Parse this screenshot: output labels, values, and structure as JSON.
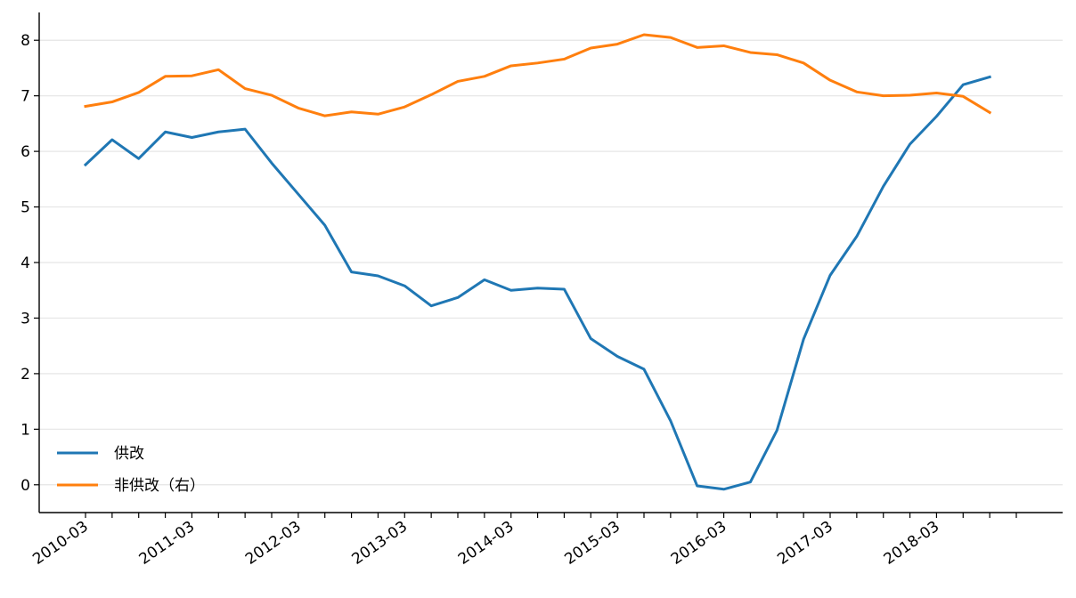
{
  "chart_data": {
    "type": "line",
    "title": "",
    "xlabel": "",
    "ylabel": "",
    "ylim": [
      -0.5,
      8.5
    ],
    "yticks": [
      0,
      1,
      2,
      3,
      4,
      5,
      6,
      7,
      8
    ],
    "grid": "horizontal",
    "legend_position": "lower-left",
    "x": [
      "2010-03",
      "2010-06",
      "2010-09",
      "2010-12",
      "2011-03",
      "2011-06",
      "2011-09",
      "2011-12",
      "2012-03",
      "2012-06",
      "2012-09",
      "2012-12",
      "2013-03",
      "2013-06",
      "2013-09",
      "2013-12",
      "2014-03",
      "2014-06",
      "2014-09",
      "2014-12",
      "2015-03",
      "2015-06",
      "2015-09",
      "2015-12",
      "2016-03",
      "2016-06",
      "2016-09",
      "2016-12",
      "2017-03",
      "2017-06",
      "2017-09",
      "2017-12",
      "2018-03",
      "2018-06",
      "2018-09",
      "2018-12"
    ],
    "xtick_labels": [
      "2010-03",
      "2011-03",
      "2012-03",
      "2013-03",
      "2014-03",
      "2015-03",
      "2016-03",
      "2017-03",
      "2018-03"
    ],
    "series": [
      {
        "name": "供改",
        "color": "#1f77b4",
        "values": [
          5.76,
          6.21,
          5.87,
          6.35,
          6.25,
          6.35,
          6.4,
          5.79,
          5.23,
          4.67,
          3.83,
          3.76,
          3.58,
          3.22,
          3.37,
          3.69,
          3.5,
          3.54,
          3.52,
          2.63,
          2.31,
          2.08,
          1.15,
          -0.02,
          -0.08,
          0.05,
          0.98,
          2.62,
          3.77,
          4.47,
          5.37,
          6.13,
          6.63,
          7.2,
          7.34,
          null
        ]
      },
      {
        "name": "非供改（右）",
        "color": "#ff7f0e",
        "values": [
          6.81,
          6.89,
          7.06,
          7.35,
          7.36,
          7.47,
          7.13,
          7.01,
          6.78,
          6.64,
          6.71,
          6.67,
          6.8,
          7.02,
          7.26,
          7.35,
          7.54,
          7.59,
          7.66,
          7.86,
          7.93,
          8.1,
          8.05,
          7.87,
          7.9,
          7.78,
          7.74,
          7.59,
          7.28,
          7.07,
          7.0,
          7.01,
          7.05,
          6.99,
          6.7,
          null
        ]
      }
    ]
  }
}
